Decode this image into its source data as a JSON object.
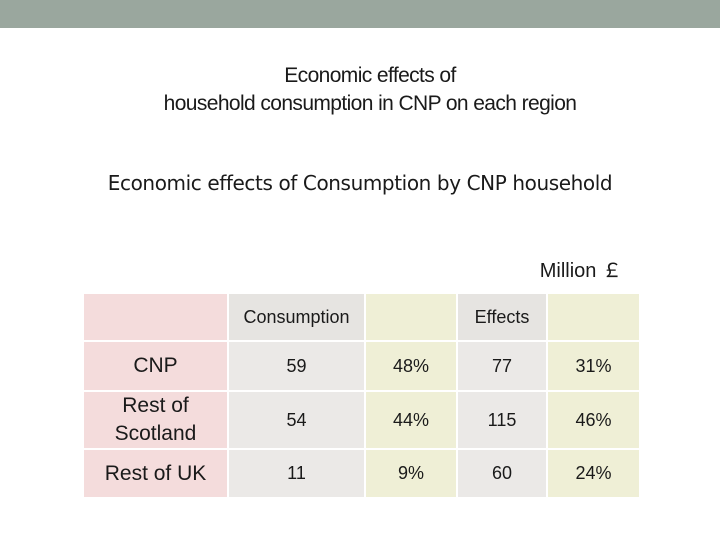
{
  "slide": {
    "title_line1": "Economic effects of",
    "title_line2": "household consumption in CNP on each region",
    "subtitle": "Economic effects of Consumption by CNP household",
    "unit": "Million ￡"
  },
  "table": {
    "headers": [
      "",
      "Consumption",
      "",
      "Effects",
      ""
    ],
    "rows": [
      {
        "region": "CNP",
        "consumption": "59",
        "consumption_pct": "48%",
        "effects": "77",
        "effects_pct": "31%"
      },
      {
        "region": "Rest of Scotland",
        "consumption": "54",
        "consumption_pct": "44%",
        "effects": "115",
        "effects_pct": "46%"
      },
      {
        "region": "Rest of UK",
        "consumption": "11",
        "consumption_pct": "9%",
        "effects": "60",
        "effects_pct": "24%"
      }
    ]
  },
  "colors": {
    "top_band": "#9aa79e",
    "region_cell": "#f4dcdc",
    "value_cell": "#ebe9e7",
    "pct_cell": "#efefd6"
  }
}
